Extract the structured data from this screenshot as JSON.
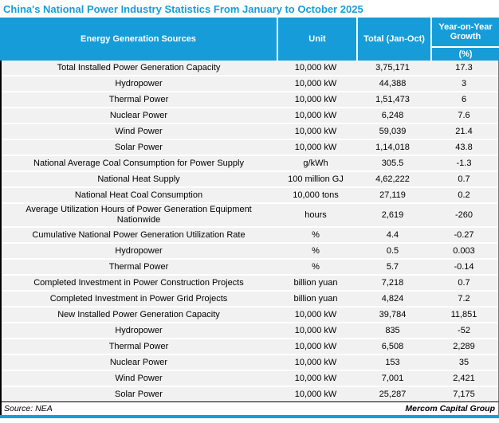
{
  "title": "China's National Power Industry Statistics From January to October 2025",
  "colors": {
    "accent": "#169DD9",
    "row_bg": "#F1F1F1",
    "header_text": "#FFFFFF",
    "body_text": "#000000"
  },
  "table": {
    "headers": {
      "source": "Energy Generation Sources",
      "unit": "Unit",
      "total": "Total (Jan-Oct)",
      "growth": "Year-on-Year Growth",
      "growth_unit": "(%)"
    },
    "rows": [
      {
        "source": "Total Installed Power Generation Capacity",
        "unit": "10,000 kW",
        "total": "3,75,171",
        "growth": "17.3"
      },
      {
        "source": "Hydropower",
        "unit": "10,000 kW",
        "total": "44,388",
        "growth": "3"
      },
      {
        "source": "Thermal Power",
        "unit": "10,000 kW",
        "total": "1,51,473",
        "growth": "6"
      },
      {
        "source": "Nuclear Power",
        "unit": "10,000 kW",
        "total": "6,248",
        "growth": "7.6"
      },
      {
        "source": "Wind Power",
        "unit": "10,000 kW",
        "total": "59,039",
        "growth": "21.4"
      },
      {
        "source": "Solar Power",
        "unit": "10,000 kW",
        "total": "1,14,018",
        "growth": "43.8"
      },
      {
        "source": "National Average Coal Consumption for Power Supply",
        "unit": "g/kWh",
        "total": "305.5",
        "growth": "-1.3"
      },
      {
        "source": "National Heat Supply",
        "unit": "100 million GJ",
        "total": "4,62,222",
        "growth": "0.7"
      },
      {
        "source": "National Heat Coal Consumption",
        "unit": "10,000 tons",
        "total": "27,119",
        "growth": "0.2"
      },
      {
        "source": "Average Utilization Hours of Power Generation Equipment Nationwide",
        "unit": "hours",
        "total": "2,619",
        "growth": "-260"
      },
      {
        "source": "Cumulative National Power Generation Utilization Rate",
        "unit": "%",
        "total": "4.4",
        "growth": "-0.27"
      },
      {
        "source": "Hydropower",
        "unit": "%",
        "total": "0.5",
        "growth": "0.003"
      },
      {
        "source": "Thermal Power",
        "unit": "%",
        "total": "5.7",
        "growth": "-0.14"
      },
      {
        "source": "Completed Investment in Power Construction Projects",
        "unit": "billion yuan",
        "total": "7,218",
        "growth": "0.7"
      },
      {
        "source": "Completed Investment in Power Grid Projects",
        "unit": "billion yuan",
        "total": "4,824",
        "growth": "7.2"
      },
      {
        "source": "New Installed Power Generation Capacity",
        "unit": "10,000 kW",
        "total": "39,784",
        "growth": "11,851"
      },
      {
        "source": "Hydropower",
        "unit": "10,000 kW",
        "total": "835",
        "growth": "-52"
      },
      {
        "source": "Thermal Power",
        "unit": "10,000 kW",
        "total": "6,508",
        "growth": "2,289"
      },
      {
        "source": "Nuclear Power",
        "unit": "10,000 kW",
        "total": "153",
        "growth": "35"
      },
      {
        "source": "Wind Power",
        "unit": "10,000 kW",
        "total": "7,001",
        "growth": "2,421"
      },
      {
        "source": "Solar Power",
        "unit": "10,000 kW",
        "total": "25,287",
        "growth": "7,175"
      }
    ]
  },
  "footer": {
    "source_label": "Source: NEA",
    "attribution": "Mercom Capital Group"
  },
  "chart_data": {
    "type": "table",
    "title": "China's National Power Industry Statistics From January to October 2025",
    "columns": [
      "Energy Generation Sources",
      "Unit",
      "Total (Jan-Oct)",
      "Year-on-Year Growth (%)"
    ],
    "rows": [
      [
        "Total Installed Power Generation Capacity",
        "10,000 kW",
        375171,
        17.3
      ],
      [
        "Hydropower",
        "10,000 kW",
        44388,
        3
      ],
      [
        "Thermal Power",
        "10,000 kW",
        151473,
        6
      ],
      [
        "Nuclear Power",
        "10,000 kW",
        6248,
        7.6
      ],
      [
        "Wind Power",
        "10,000 kW",
        59039,
        21.4
      ],
      [
        "Solar Power",
        "10,000 kW",
        114018,
        43.8
      ],
      [
        "National Average Coal Consumption for Power Supply",
        "g/kWh",
        305.5,
        -1.3
      ],
      [
        "National Heat Supply",
        "100 million GJ",
        462222,
        0.7
      ],
      [
        "National Heat Coal Consumption",
        "10,000 tons",
        27119,
        0.2
      ],
      [
        "Average Utilization Hours of Power Generation Equipment Nationwide",
        "hours",
        2619,
        -260
      ],
      [
        "Cumulative National Power Generation Utilization Rate",
        "%",
        4.4,
        -0.27
      ],
      [
        "Hydropower",
        "%",
        0.5,
        0.003
      ],
      [
        "Thermal Power",
        "%",
        5.7,
        -0.14
      ],
      [
        "Completed Investment in Power Construction Projects",
        "billion yuan",
        7218,
        0.7
      ],
      [
        "Completed Investment in Power Grid Projects",
        "billion yuan",
        4824,
        7.2
      ],
      [
        "New Installed Power Generation Capacity",
        "10,000 kW",
        39784,
        11851
      ],
      [
        "Hydropower",
        "10,000 kW",
        835,
        -52
      ],
      [
        "Thermal Power",
        "10,000 kW",
        6508,
        2289
      ],
      [
        "Nuclear Power",
        "10,000 kW",
        153,
        35
      ],
      [
        "Wind Power",
        "10,000 kW",
        7001,
        2421
      ],
      [
        "Solar Power",
        "10,000 kW",
        25287,
        7175
      ]
    ],
    "source": "NEA",
    "publisher": "Mercom Capital Group"
  }
}
